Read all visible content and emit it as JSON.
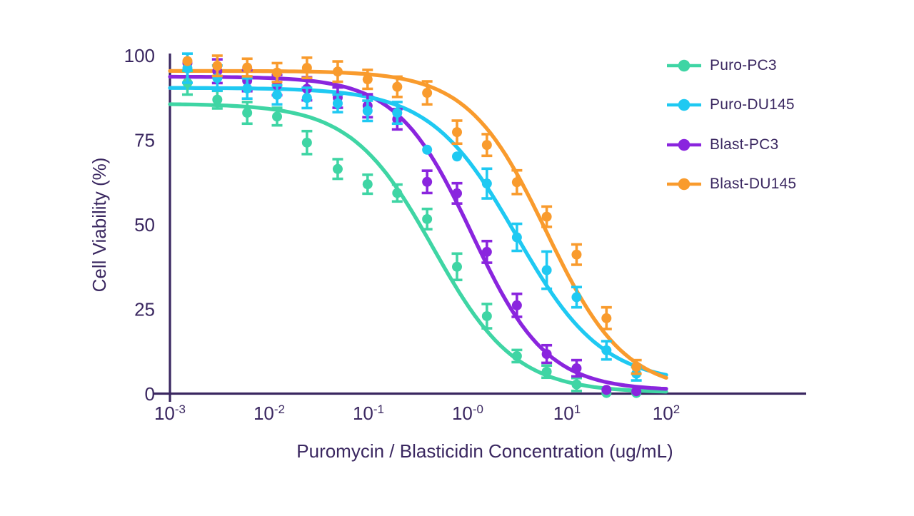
{
  "chart_data": {
    "type": "scatter",
    "title": "",
    "xlabel": "Puromycin / Blasticidin Concentration (ug/mL)",
    "ylabel": "Cell Viability (%)",
    "x_scale": "log",
    "xlim_log10": [
      -3,
      2
    ],
    "ylim": [
      0,
      100
    ],
    "grid": false,
    "legend_position": "top-right",
    "background": "#FFFFFF",
    "axis_color": "#3A2760",
    "x_tick_exponents": [
      "-3",
      "-2",
      "-1",
      "-0",
      "1",
      "2"
    ],
    "y_ticks": [
      0,
      25,
      50,
      75,
      100
    ],
    "doses_ug_ml": [
      0.0015,
      0.003,
      0.006,
      0.012,
      0.024,
      0.049,
      0.098,
      0.195,
      0.39,
      0.78,
      1.56,
      3.13,
      6.25,
      12.5,
      25,
      50
    ],
    "series": [
      {
        "name": "Puro-PC3",
        "color": "#3FD5A4",
        "z": 0,
        "values": [
          92,
          87,
          83.1,
          82,
          74.3,
          66.5,
          62,
          59.4,
          51.7,
          37.6,
          23,
          11.2,
          6.6,
          2.8,
          0.3,
          0.3
        ],
        "errors": [
          3.5,
          2.6,
          3.2,
          2.6,
          3.4,
          2.9,
          2.8,
          2.5,
          3,
          3.9,
          3.6,
          1.8,
          1.8,
          1.9,
          0,
          0
        ],
        "fit": {
          "top": 85.8,
          "bottom": 0.4,
          "ic50": 0.45,
          "hill": 1.05
        }
      },
      {
        "name": "Puro-DU145",
        "color": "#1FC9F2",
        "z": 2,
        "values": [
          96.3,
          93.4,
          90.3,
          88.4,
          87.5,
          85.9,
          83.7,
          83.1,
          72.2,
          70.2,
          62.2,
          46.3,
          36.6,
          28.6,
          12.9,
          6.0
        ],
        "errors": [
          4.3,
          3.7,
          3.0,
          2.8,
          3.0,
          2.6,
          3.0,
          3.2,
          0,
          0,
          4.4,
          4.0,
          5.5,
          3.0,
          2.7,
          2.0
        ],
        "fit": {
          "top": 90.5,
          "bottom": 3.0,
          "ic50": 3.1,
          "hill": 1.0
        }
      },
      {
        "name": "Blast-PC3",
        "color": "#8A25DE",
        "z": 1,
        "values": [
          97.8,
          95.4,
          92.6,
          91.3,
          90.2,
          87.6,
          85.2,
          81.2,
          62.7,
          59.3,
          42.0,
          26.2,
          11.8,
          7.6,
          1.2,
          0.8
        ],
        "errors": [
          0,
          3.5,
          3.1,
          3.0,
          3.4,
          3.0,
          3.4,
          3.0,
          3.3,
          3.0,
          3.2,
          3.4,
          2.6,
          2.4,
          0,
          0
        ],
        "fit": {
          "top": 93.8,
          "bottom": 1.0,
          "ic50": 1.1,
          "hill": 1.15
        }
      },
      {
        "name": "Blast-DU145",
        "color": "#F99B2D",
        "z": 3,
        "values": [
          98.4,
          97.0,
          96.5,
          95.0,
          96.4,
          95.3,
          93.0,
          90.8,
          89.0,
          77.4,
          73.6,
          62.6,
          52.4,
          41.2,
          22.4,
          8.0
        ],
        "errors": [
          0,
          3.0,
          2.6,
          2.8,
          3.0,
          3.0,
          2.8,
          3.0,
          3.4,
          3.4,
          3.2,
          3.5,
          3.0,
          3.0,
          3.2,
          2.0
        ],
        "fit": {
          "top": 95.5,
          "bottom": 0.5,
          "ic50": 6.2,
          "hill": 1.1
        }
      }
    ]
  }
}
